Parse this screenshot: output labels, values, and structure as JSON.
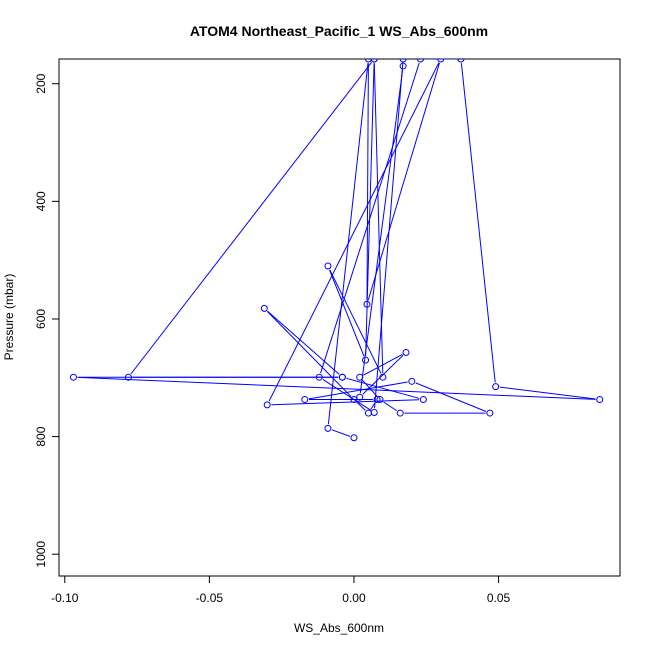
{
  "chart_data": {
    "type": "line",
    "title": "ATOM4 Northeast_Pacific_1 WS_Abs_600nm",
    "xlabel": "WS_Abs_600nm",
    "ylabel": "Pressure (mbar)",
    "xlim": [
      -0.102,
      0.092
    ],
    "ylim": [
      1037,
      158
    ],
    "y_reversed": true,
    "xticks": [
      -0.1,
      -0.05,
      0.0,
      0.05
    ],
    "xtick_labels": [
      "-0.10",
      "-0.05",
      "0.00",
      "0.05"
    ],
    "yticks": [
      200,
      400,
      600,
      800,
      1000
    ],
    "ytick_labels": [
      "200",
      "400",
      "600",
      "800",
      "1000"
    ],
    "grid": false,
    "legend": "none",
    "series": [
      {
        "color": "#0000ff",
        "marker": "open-circle",
        "x": [
          0.0,
          -0.009,
          0.005,
          0.0045,
          0.03,
          -0.03,
          0.024,
          -0.004,
          -0.097,
          0.085,
          0.049,
          0.037,
          0.023,
          -0.012,
          0.007,
          0.017,
          0.017,
          0.002,
          0.018,
          0.002,
          0.009,
          0.016,
          0.047,
          0.02,
          -0.017,
          0.008,
          0.005,
          0.0,
          -0.031,
          -0.004,
          -0.078,
          0.007,
          0.01,
          -0.009,
          0.004,
          0.007
        ],
        "y": [
          802,
          786,
          158,
          575,
          158,
          746,
          737,
          699,
          699,
          737,
          715,
          158,
          158,
          699,
          759,
          158,
          170,
          733,
          657,
          699,
          737,
          760,
          760,
          706,
          737,
          737,
          760,
          737,
          582,
          699,
          699,
          158,
          699,
          510,
          670,
          158
        ]
      }
    ]
  }
}
